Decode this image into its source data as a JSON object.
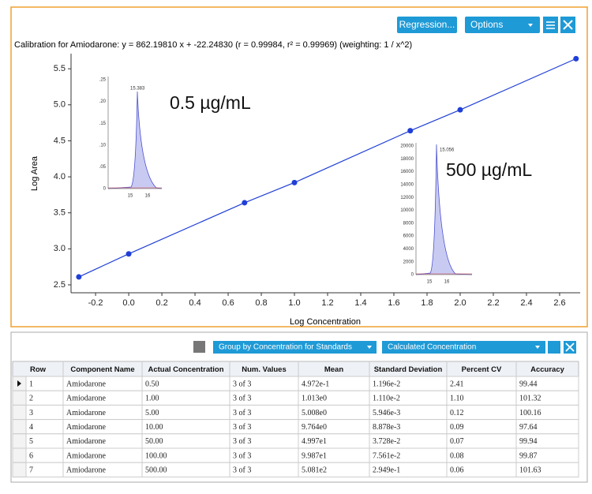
{
  "chart_data": {
    "type": "scatter",
    "line": true,
    "title": "Calibration for Amiodarone: y = 862.19810 x + -22.24830 (r = 0.99984, r² = 0.99969)  (weighting: 1 / x^2)",
    "x_label": "Log Concentration",
    "y_label": "Log Area",
    "x": [
      -0.301,
      0,
      0.699,
      1,
      1.699,
      2,
      2.699
    ],
    "values": [
      2.61,
      2.93,
      3.64,
      3.92,
      4.64,
      4.93,
      5.64
    ],
    "color": "#1f3fd6",
    "xlim": [
      -0.348,
      2.724
    ],
    "xticks": [
      -0.2,
      {
        "value": 0,
        "label": "0.0"
      },
      0.2,
      0.4,
      0.6,
      0.8,
      {
        "value": 1,
        "label": "1.0"
      },
      1.2,
      1.4,
      1.6,
      1.8,
      {
        "value": 2,
        "label": "2.0"
      },
      2.2,
      2.4,
      2.6
    ],
    "ylim": [
      2.39,
      5.71
    ],
    "yticks": [
      2.5,
      {
        "value": 3,
        "label": "3.0"
      },
      3.5,
      {
        "value": 4,
        "label": "4.0"
      },
      4.5,
      {
        "value": 5,
        "label": "5.0"
      },
      5.5
    ]
  },
  "toolbar_top": {
    "regression": "Regression...",
    "options": "Options"
  },
  "insets": [
    {
      "label": "0.5 µg/mL",
      "peak_label": "15.383",
      "yticks": [
        ".25",
        ".20",
        ".15",
        ".10",
        ".05",
        "0"
      ],
      "xticks": [
        "15",
        "16"
      ]
    },
    {
      "label": "500 µg/mL",
      "peak_label": "15.056",
      "yticks": [
        "20000",
        "18000",
        "16000",
        "14000",
        "12000",
        "10000",
        "8000",
        "6000",
        "4000",
        "2000",
        "0"
      ],
      "xticks": [
        "15",
        "16"
      ]
    }
  ],
  "toolbar_bottom": {
    "group": "Group by Concentration for Standards",
    "column": "Calculated Concentration"
  },
  "table": {
    "headers": [
      "Row",
      "Component Name",
      "Actual Concentration",
      "Num. Values",
      "Mean",
      "Standard Deviation",
      "Percent CV",
      "Accuracy"
    ],
    "rows": [
      [
        "1",
        "Amiodarone",
        "0.50",
        "3 of 3",
        "4.972e-1",
        "1.196e-2",
        "2.41",
        "99.44"
      ],
      [
        "2",
        "Amiodarone",
        "1.00",
        "3 of 3",
        "1.013e0",
        "1.110e-2",
        "1.10",
        "101.32"
      ],
      [
        "3",
        "Amiodarone",
        "5.00",
        "3 of 3",
        "5.008e0",
        "5.946e-3",
        "0.12",
        "100.16"
      ],
      [
        "4",
        "Amiodarone",
        "10.00",
        "3 of 3",
        "9.764e0",
        "8.878e-3",
        "0.09",
        "97.64"
      ],
      [
        "5",
        "Amiodarone",
        "50.00",
        "3 of 3",
        "4.997e1",
        "3.728e-2",
        "0.07",
        "99.94"
      ],
      [
        "6",
        "Amiodarone",
        "100.00",
        "3 of 3",
        "9.987e1",
        "7.561e-2",
        "0.08",
        "99.87"
      ],
      [
        "7",
        "Amiodarone",
        "500.00",
        "3 of 3",
        "5.081e2",
        "2.949e-1",
        "0.06",
        "101.63"
      ]
    ]
  }
}
